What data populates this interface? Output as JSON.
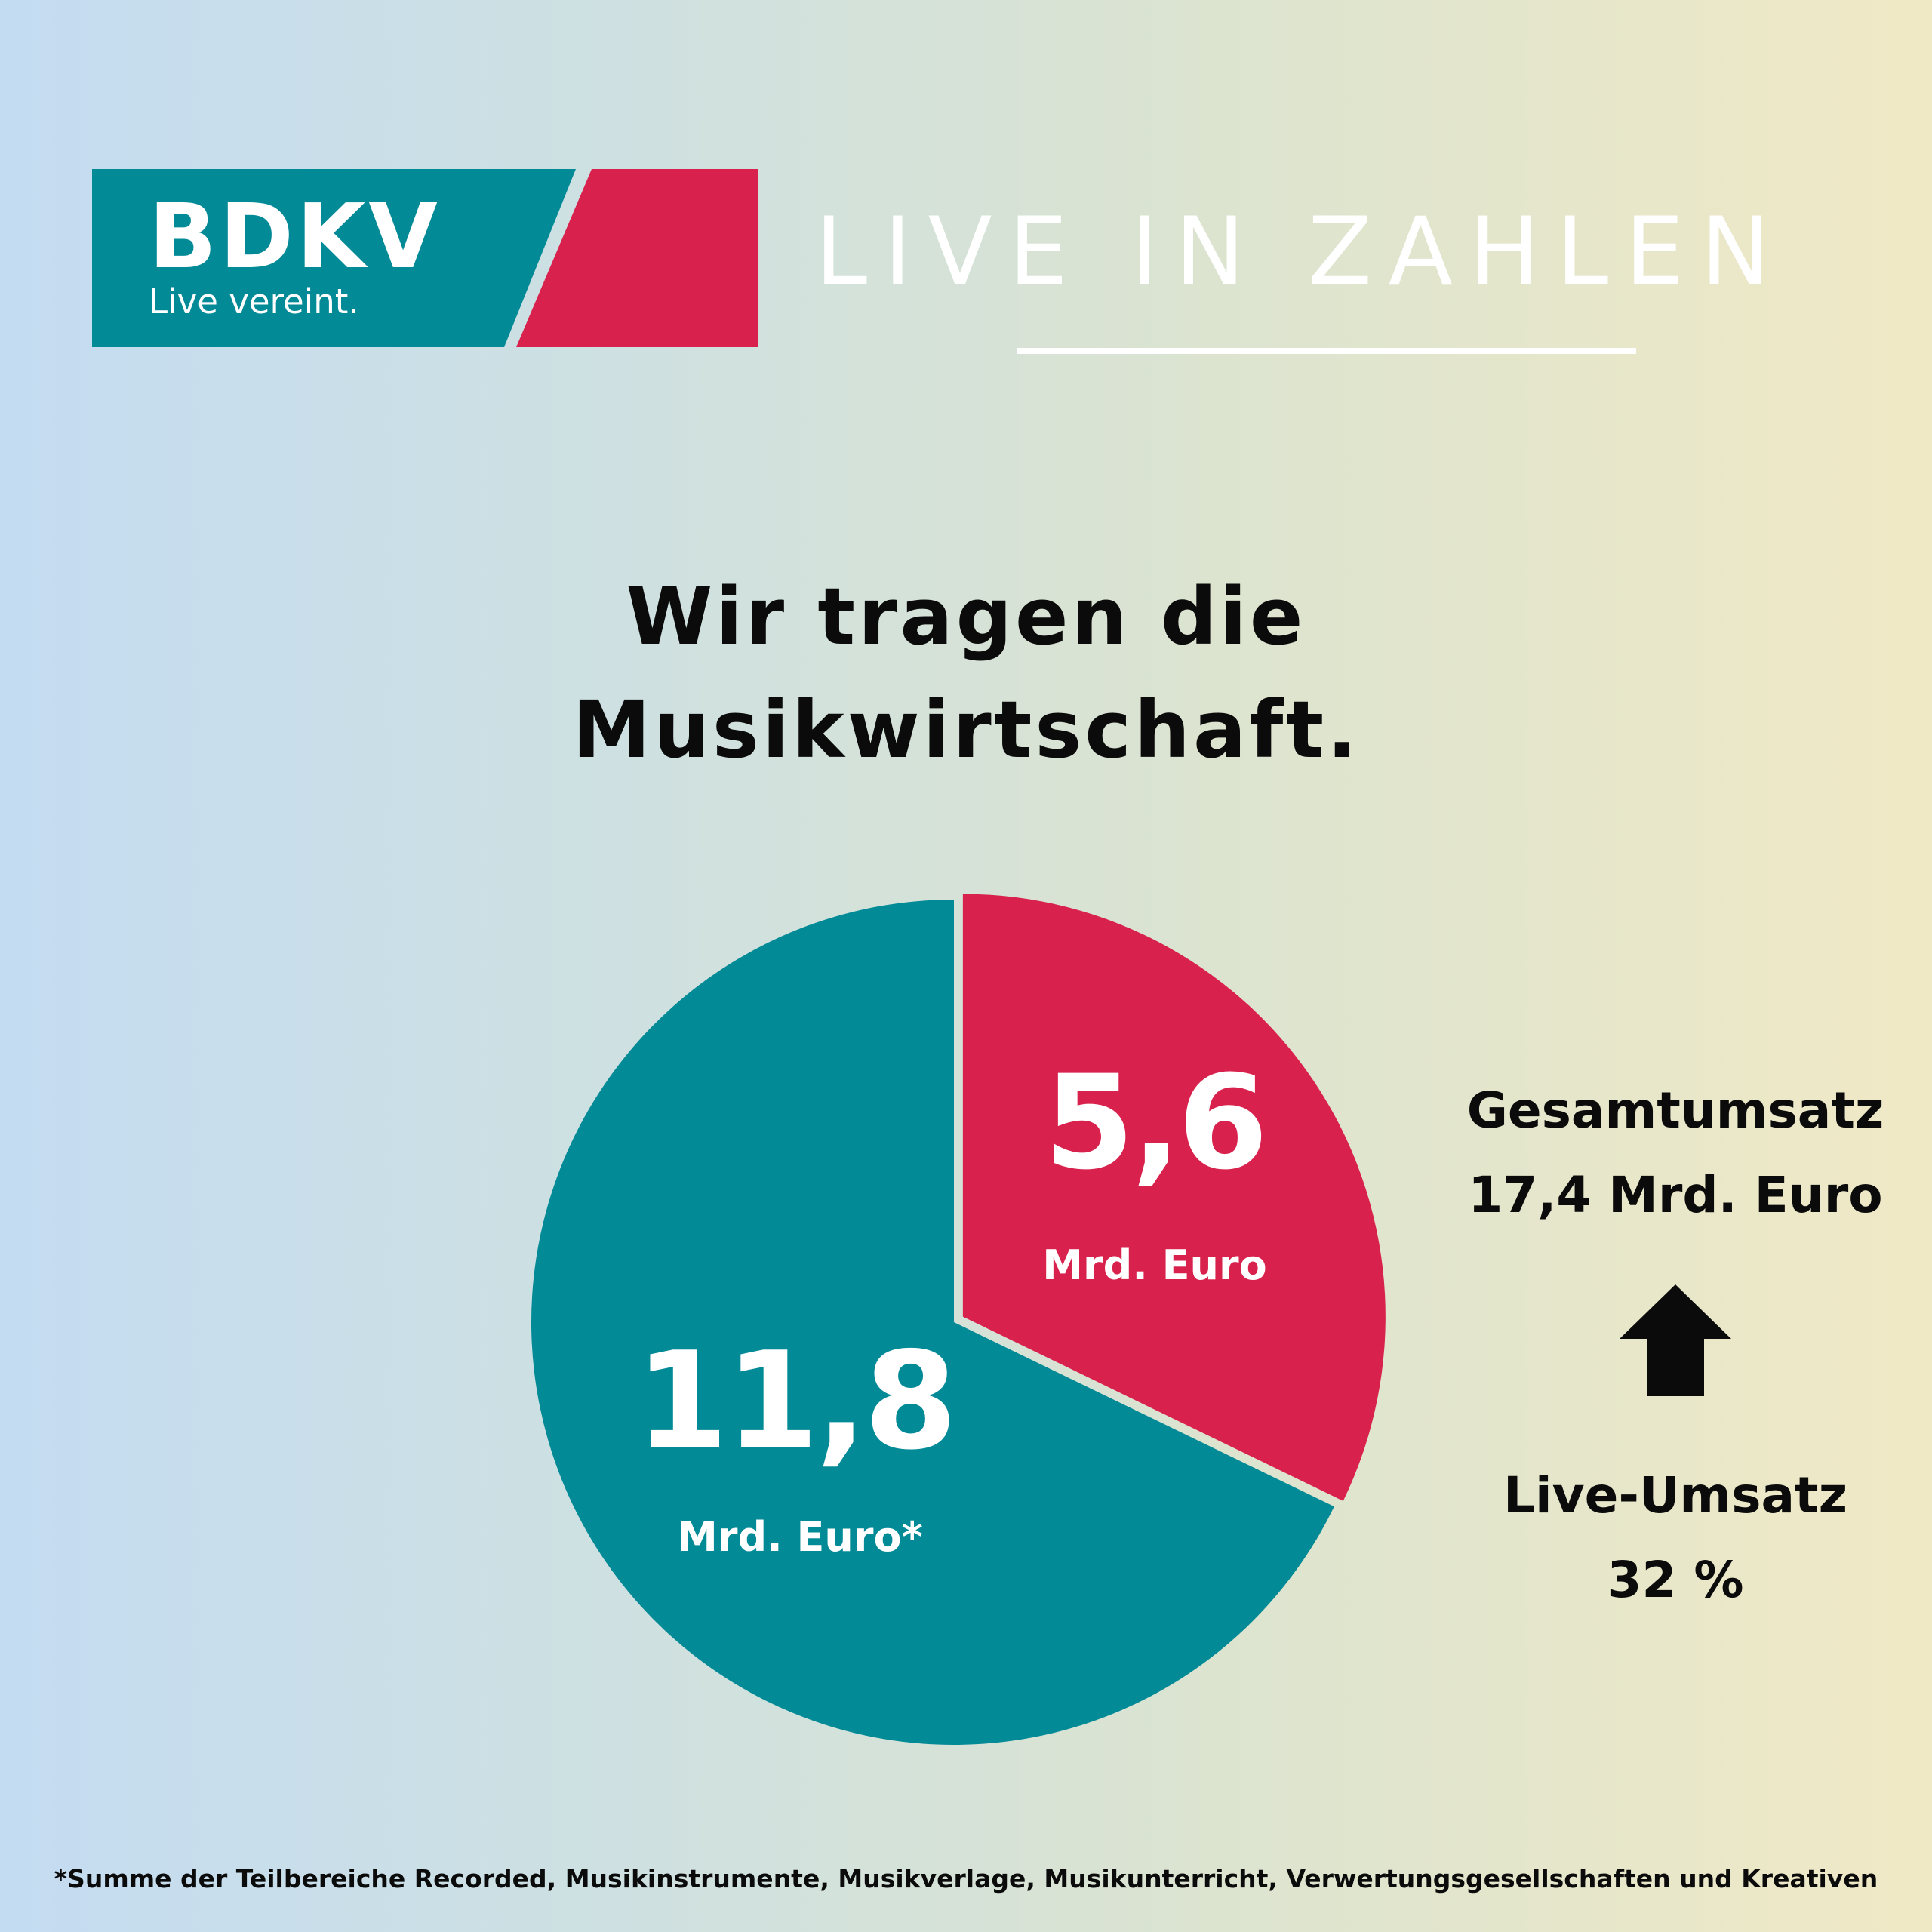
{
  "colors": {
    "teal": "#028a96",
    "crimson": "#d8224d",
    "text": "#0b0b0b",
    "white": "#ffffff"
  },
  "logo": {
    "name": "BDKV",
    "tagline": "Live vereint."
  },
  "header": {
    "title": "LIVE IN ZAHLEN"
  },
  "headline": {
    "line1": "Wir tragen die",
    "line2": "Musikwirtschaft."
  },
  "chart_data": {
    "type": "pie",
    "slices": [
      {
        "value": 5.6,
        "label": "5,6",
        "unit": "Mrd. Euro",
        "color": "#d8224d",
        "exploded": true
      },
      {
        "value": 11.8,
        "label": "11,8",
        "unit": "Mrd. Euro*",
        "color": "#028a96",
        "exploded": false
      }
    ],
    "total": 17.4,
    "title": "",
    "legend": "none"
  },
  "side": {
    "total_label": "Gesamtumsatz",
    "total_value": "17,4 Mrd. Euro",
    "arrow_icon": "arrow-up-icon",
    "share_label": "Live-Umsatz",
    "share_value": "32 %"
  },
  "footnote": "*Summe der Teilbereiche Recorded, Musikinstrumente, Musikverlage, Musikunterricht, Verwertungsgesellschaften und Kreativen"
}
